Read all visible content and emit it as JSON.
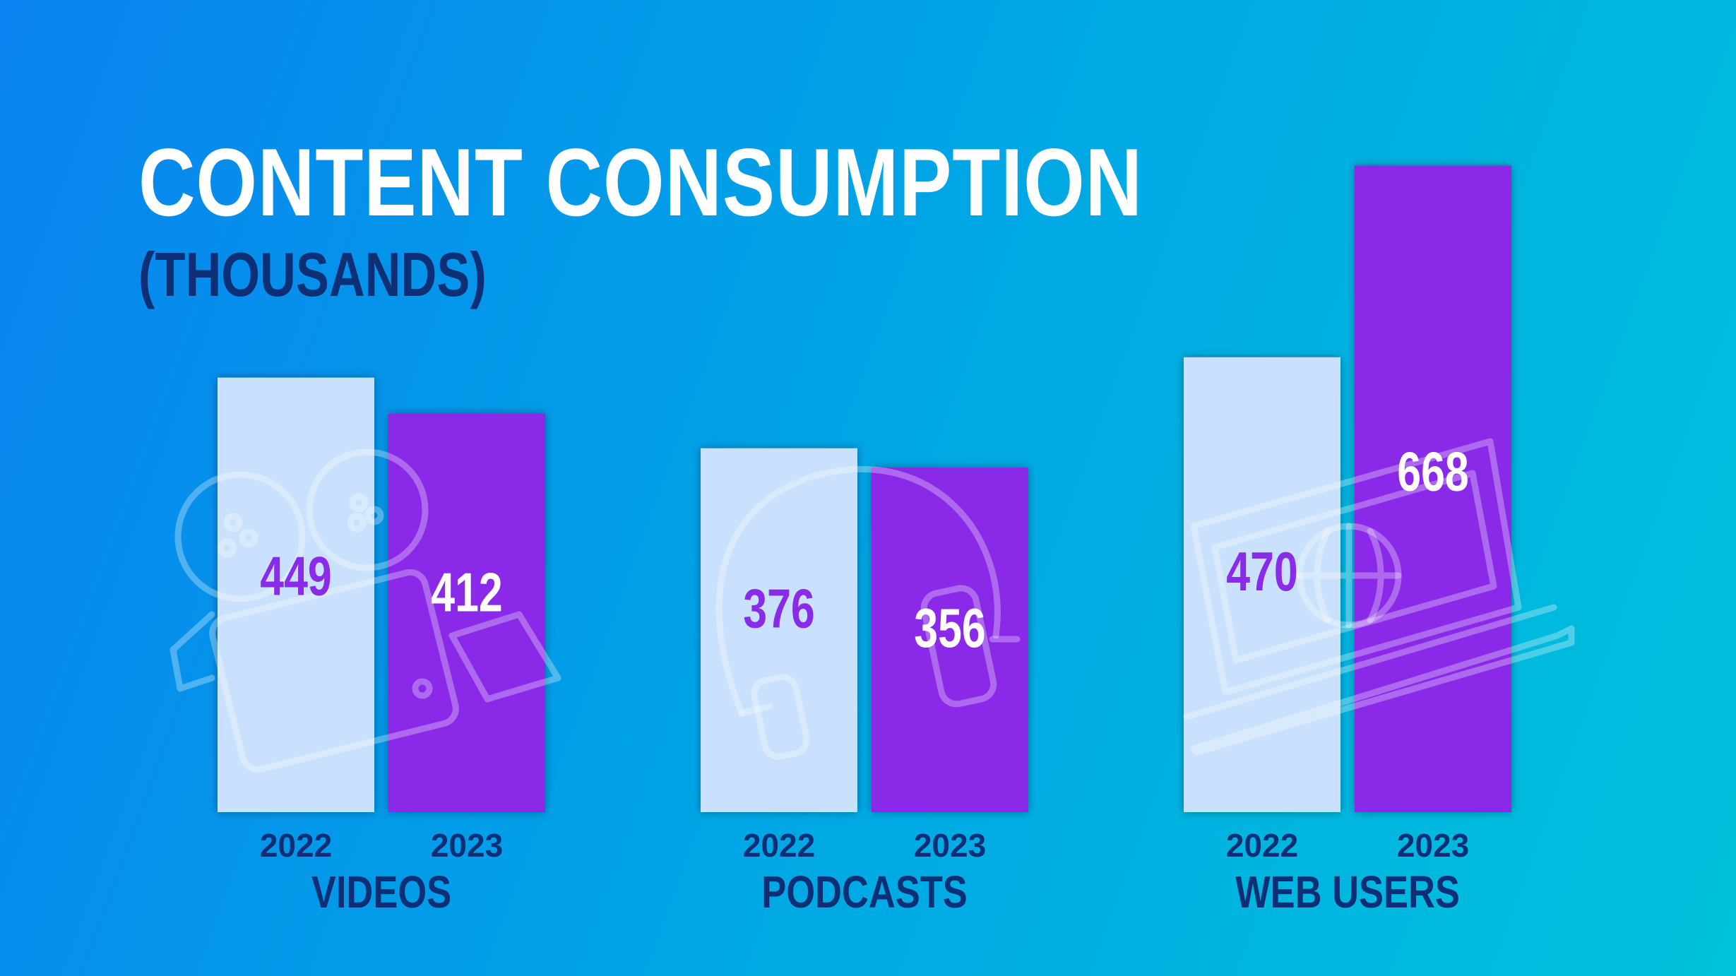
{
  "header": {
    "title": "CONTENT CONSUMPTION",
    "subtitle": "(THOUSANDS)"
  },
  "colors": {
    "bar_2022": "#c9e1fd",
    "bar_2023": "#8a2be8",
    "value_on_light": "#8a2be8",
    "value_on_dark": "#ffffff",
    "axis_text": "#0c2f76"
  },
  "icons": [
    "video-camera-icon",
    "microphone-icon",
    "laptop-globe-icon"
  ],
  "chart_data": {
    "type": "bar",
    "categories": [
      "VIDEOS",
      "PODCASTS",
      "WEB USERS"
    ],
    "years": [
      "2022",
      "2023"
    ],
    "series": [
      {
        "name": "2022",
        "values": [
          449,
          376,
          470
        ]
      },
      {
        "name": "2023",
        "values": [
          412,
          356,
          668
        ]
      }
    ],
    "ylim": [
      0,
      700
    ],
    "grid": false
  }
}
